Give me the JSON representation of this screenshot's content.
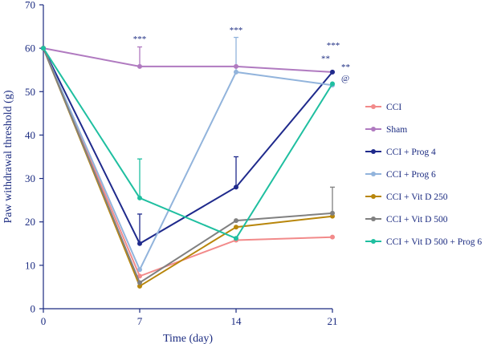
{
  "chart_data": {
    "type": "line",
    "title": "",
    "xlabel": "Time  (day)",
    "ylabel": "Paw withdrawal  threshold  (g)",
    "x": [
      0,
      7,
      14,
      21
    ],
    "x_tick_labels": [
      "0",
      "7",
      "14",
      "21"
    ],
    "xlim": [
      0,
      21
    ],
    "ylim": [
      0,
      70
    ],
    "y_ticks": [
      0,
      10,
      20,
      30,
      40,
      50,
      60,
      70
    ],
    "y_tick_labels": [
      "0",
      "10",
      "20",
      "30",
      "40",
      "50",
      "60",
      "70"
    ],
    "grid": false,
    "legend_position": "right",
    "series": [
      {
        "name": "CCI",
        "color": "#f28a8a",
        "values": [
          60,
          7.5,
          15.8,
          16.5
        ],
        "errors": [
          0,
          0,
          0,
          0
        ]
      },
      {
        "name": "Sham",
        "color": "#b07ac0",
        "values": [
          60,
          55.8,
          55.8,
          54.5
        ],
        "errors": [
          0,
          4.5,
          0,
          0
        ]
      },
      {
        "name": "CCI + Prog 4",
        "color": "#1f2a8c",
        "values": [
          60,
          15,
          28,
          54.5
        ],
        "errors": [
          0,
          6.8,
          7,
          0
        ]
      },
      {
        "name": "CCI + Prog 6",
        "color": "#92b4dc",
        "values": [
          60,
          9,
          54.5,
          51.5
        ],
        "errors": [
          0,
          0,
          8,
          0
        ]
      },
      {
        "name": "CCI + Vit D 250",
        "color": "#b8860b",
        "values": [
          60,
          5.2,
          18.8,
          21.3
        ],
        "errors": [
          0,
          0,
          0,
          0
        ]
      },
      {
        "name": "CCI + Vit D 500",
        "color": "#808080",
        "values": [
          60,
          6,
          20.3,
          22
        ],
        "errors": [
          0,
          0,
          0,
          6
        ]
      },
      {
        "name": "CCI + Vit D 500 + Prog 6",
        "color": "#1fbfa0",
        "values": [
          60,
          25.5,
          16.2,
          51.8
        ],
        "errors": [
          0,
          9,
          0,
          0
        ]
      }
    ],
    "annotations": [
      {
        "text": "***",
        "x": 7,
        "y": 61.5
      },
      {
        "text": "***",
        "x": 14,
        "y": 63.5
      },
      {
        "text": "***",
        "x": 21,
        "y": 60
      },
      {
        "text": "**",
        "x": 21,
        "y": 57
      },
      {
        "text": "**",
        "x": 21,
        "y": 55
      },
      {
        "text": "@",
        "x": 21,
        "y": 52.5
      }
    ]
  }
}
